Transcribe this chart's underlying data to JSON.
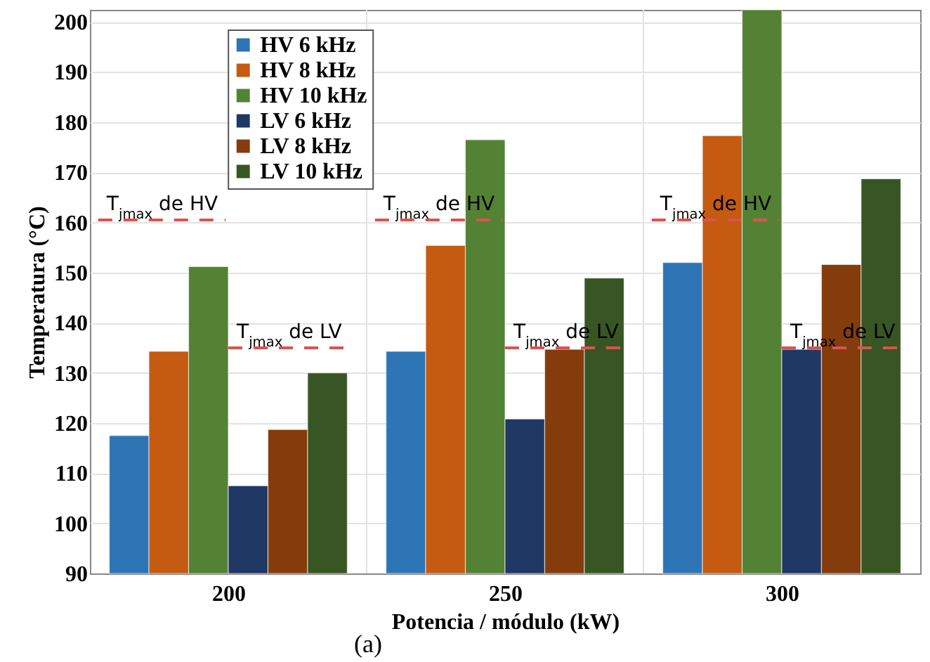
{
  "chart_data": {
    "type": "bar",
    "xlabel": "Potencia / módulo (kW)",
    "ylabel": "Temperatura (°C)",
    "categories": [
      "200",
      "250",
      "300"
    ],
    "series": [
      {
        "name": "HV 6 kHz",
        "color": "#2e75b6",
        "values": [
          117.5,
          134.3,
          152
        ]
      },
      {
        "name": "HV 8 kHz",
        "color": "#c55a11",
        "values": [
          134.3,
          155.4,
          177.3
        ]
      },
      {
        "name": "HV 10 kHz",
        "color": "#548235",
        "values": [
          151.2,
          176.5,
          202.4
        ]
      },
      {
        "name": "LV 6 kHz",
        "color": "#1f3864",
        "values": [
          107.5,
          120.8,
          134.7
        ]
      },
      {
        "name": "LV 8 kHz",
        "color": "#843c0c",
        "values": [
          118.7,
          134.7,
          151.6
        ]
      },
      {
        "name": "LV 10 kHz",
        "color": "#375623",
        "values": [
          130,
          148.9,
          168.7
        ]
      }
    ],
    "ylim": [
      90,
      202.4
    ],
    "yticks": [
      90,
      100,
      110,
      120,
      130,
      140,
      150,
      160,
      170,
      180,
      190,
      200
    ],
    "ref_lines": [
      {
        "axis": "y",
        "value": 160.5,
        "label": "T$_{jmax}$ de HV",
        "color": "#d9534f",
        "line_style": "dashed"
      },
      {
        "axis": "y",
        "value": 135,
        "label": "T$_{jmax}$ de LV",
        "color": "#d9534f",
        "line_style": "dashed"
      }
    ],
    "annotations": [
      "(a)"
    ],
    "grid": true,
    "legend": "top left"
  }
}
